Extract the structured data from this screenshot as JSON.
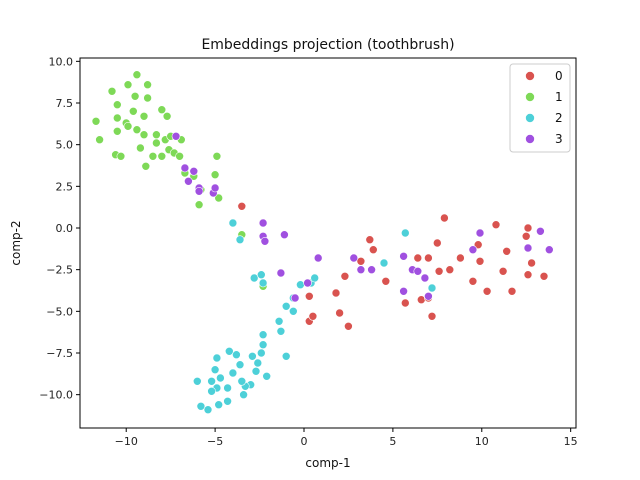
{
  "chart_data": {
    "type": "scatter",
    "title": "Embeddings projection (toothbrush)",
    "xlabel": "comp-1",
    "ylabel": "comp-2",
    "xlim": [
      -12.6,
      15.3
    ],
    "ylim": [
      -12.0,
      10.2
    ],
    "xticks": [
      -10,
      -5,
      0,
      5,
      10,
      15
    ],
    "xtick_labels": [
      "−10",
      "−5",
      "0",
      "5",
      "10",
      "15"
    ],
    "yticks": [
      10.0,
      7.5,
      5.0,
      2.5,
      0.0,
      -2.5,
      -5.0,
      -7.5,
      -10.0
    ],
    "ytick_labels": [
      "10.0",
      "7.5",
      "5.0",
      "2.5",
      "0.0",
      "−2.5",
      "−5.0",
      "−7.5",
      "−10.0"
    ],
    "grid": false,
    "legend_position": "top-right",
    "series": [
      {
        "name": "0",
        "color": "#d9534f",
        "points": [
          [
            -3.5,
            1.3
          ],
          [
            -2.3,
            -3.5
          ],
          [
            0.3,
            -4.1
          ],
          [
            0.3,
            -5.6
          ],
          [
            0.5,
            -5.3
          ],
          [
            1.8,
            -3.9
          ],
          [
            2.0,
            -5.1
          ],
          [
            2.3,
            -2.9
          ],
          [
            2.5,
            -5.9
          ],
          [
            3.2,
            -2.0
          ],
          [
            3.7,
            -0.7
          ],
          [
            3.9,
            -1.3
          ],
          [
            4.6,
            -3.2
          ],
          [
            5.7,
            -4.5
          ],
          [
            6.4,
            -1.8
          ],
          [
            6.6,
            -4.3
          ],
          [
            7.0,
            -4.2
          ],
          [
            7.0,
            -1.8
          ],
          [
            7.2,
            -5.3
          ],
          [
            7.5,
            -0.9
          ],
          [
            7.6,
            -2.6
          ],
          [
            7.9,
            0.6
          ],
          [
            8.2,
            -2.5
          ],
          [
            8.8,
            -1.8
          ],
          [
            9.5,
            -3.2
          ],
          [
            9.8,
            -1.0
          ],
          [
            9.9,
            -2.0
          ],
          [
            10.3,
            -3.8
          ],
          [
            10.8,
            0.2
          ],
          [
            11.2,
            -2.6
          ],
          [
            11.4,
            -1.4
          ],
          [
            11.7,
            -3.8
          ],
          [
            12.5,
            -0.5
          ],
          [
            12.6,
            0.0
          ],
          [
            12.6,
            -2.8
          ],
          [
            12.8,
            -2.1
          ],
          [
            13.5,
            -2.9
          ]
        ]
      },
      {
        "name": "1",
        "color": "#7ed957",
        "points": [
          [
            -11.7,
            6.4
          ],
          [
            -11.5,
            5.3
          ],
          [
            -10.8,
            8.2
          ],
          [
            -10.6,
            4.4
          ],
          [
            -10.5,
            5.8
          ],
          [
            -10.5,
            6.6
          ],
          [
            -10.5,
            7.4
          ],
          [
            -10.3,
            4.3
          ],
          [
            -10.0,
            6.3
          ],
          [
            -9.9,
            6.1
          ],
          [
            -9.9,
            8.6
          ],
          [
            -9.6,
            7.0
          ],
          [
            -9.5,
            7.9
          ],
          [
            -9.4,
            9.2
          ],
          [
            -9.4,
            5.9
          ],
          [
            -9.2,
            4.8
          ],
          [
            -9.0,
            5.6
          ],
          [
            -9.0,
            6.7
          ],
          [
            -8.9,
            3.7
          ],
          [
            -8.8,
            7.8
          ],
          [
            -8.8,
            8.6
          ],
          [
            -8.5,
            4.3
          ],
          [
            -8.3,
            5.6
          ],
          [
            -8.3,
            5.1
          ],
          [
            -8.0,
            7.1
          ],
          [
            -8.0,
            4.3
          ],
          [
            -7.8,
            5.3
          ],
          [
            -7.7,
            6.7
          ],
          [
            -7.6,
            4.7
          ],
          [
            -7.5,
            5.5
          ],
          [
            -7.3,
            4.5
          ],
          [
            -7.0,
            4.3
          ],
          [
            -6.9,
            5.3
          ],
          [
            -6.7,
            3.3
          ],
          [
            -6.2,
            3.1
          ],
          [
            -5.9,
            1.4
          ],
          [
            -5.8,
            2.3
          ],
          [
            -5.0,
            3.2
          ],
          [
            -4.9,
            4.3
          ],
          [
            -4.8,
            1.8
          ],
          [
            -3.5,
            -0.4
          ],
          [
            -2.3,
            -3.5
          ]
        ]
      },
      {
        "name": "2",
        "color": "#4dd0d8",
        "points": [
          [
            -4.0,
            0.3
          ],
          [
            -3.6,
            -0.7
          ],
          [
            -2.8,
            -3.0
          ],
          [
            -2.4,
            -2.8
          ],
          [
            -2.3,
            -3.3
          ],
          [
            -1.4,
            -5.6
          ],
          [
            -1.3,
            -6.2
          ],
          [
            -1.0,
            -4.7
          ],
          [
            -1.0,
            -7.7
          ],
          [
            -0.6,
            -4.2
          ],
          [
            -0.6,
            -5.0
          ],
          [
            -0.2,
            -3.4
          ],
          [
            0.4,
            -3.3
          ],
          [
            0.6,
            -3.0
          ],
          [
            4.5,
            -2.1
          ],
          [
            5.7,
            -0.3
          ],
          [
            7.2,
            -3.6
          ],
          [
            -2.3,
            -6.4
          ],
          [
            -2.3,
            -7.0
          ],
          [
            -2.4,
            -7.5
          ],
          [
            -2.6,
            -8.1
          ],
          [
            -2.7,
            -8.6
          ],
          [
            -2.9,
            -7.7
          ],
          [
            -3.0,
            -9.4
          ],
          [
            -3.3,
            -9.5
          ],
          [
            -3.4,
            -10.0
          ],
          [
            -3.5,
            -9.2
          ],
          [
            -3.6,
            -8.2
          ],
          [
            -3.8,
            -7.6
          ],
          [
            -4.0,
            -8.7
          ],
          [
            -4.2,
            -7.4
          ],
          [
            -4.3,
            -9.6
          ],
          [
            -4.3,
            -10.4
          ],
          [
            -4.7,
            -9.0
          ],
          [
            -4.8,
            -10.6
          ],
          [
            -4.9,
            -9.6
          ],
          [
            -4.9,
            -7.8
          ],
          [
            -5.0,
            -8.5
          ],
          [
            -5.2,
            -9.2
          ],
          [
            -5.2,
            -9.8
          ],
          [
            -5.4,
            -10.9
          ],
          [
            -5.8,
            -10.7
          ],
          [
            -6.0,
            -9.2
          ],
          [
            -2.1,
            -8.9
          ]
        ]
      },
      {
        "name": "3",
        "color": "#a050e0",
        "points": [
          [
            -6.7,
            3.6
          ],
          [
            -6.5,
            2.8
          ],
          [
            -6.2,
            3.4
          ],
          [
            -5.9,
            2.4
          ],
          [
            -5.9,
            2.2
          ],
          [
            -5.1,
            2.1
          ],
          [
            -5.0,
            2.4
          ],
          [
            -2.3,
            0.3
          ],
          [
            -2.3,
            -0.5
          ],
          [
            -2.2,
            -0.8
          ],
          [
            -1.3,
            -2.7
          ],
          [
            -1.1,
            -0.4
          ],
          [
            -0.5,
            -4.2
          ],
          [
            0.2,
            -3.3
          ],
          [
            0.8,
            -1.8
          ],
          [
            2.8,
            -1.8
          ],
          [
            3.2,
            -2.5
          ],
          [
            3.8,
            -2.5
          ],
          [
            5.6,
            -1.7
          ],
          [
            5.6,
            -3.8
          ],
          [
            6.1,
            -2.5
          ],
          [
            6.4,
            -2.6
          ],
          [
            6.8,
            -3.0
          ],
          [
            7.0,
            -4.1
          ],
          [
            9.5,
            -1.3
          ],
          [
            9.9,
            -0.3
          ],
          [
            12.6,
            -1.2
          ],
          [
            13.3,
            -0.2
          ],
          [
            13.8,
            -1.3
          ],
          [
            -7.2,
            5.5
          ]
        ]
      }
    ]
  }
}
